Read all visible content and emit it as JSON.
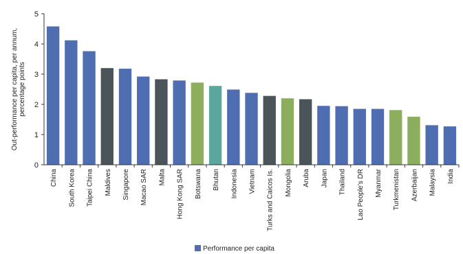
{
  "chart_data": {
    "type": "bar",
    "title": "",
    "xlabel": "",
    "ylabel": "Out-performance per capita, per annum, percentage points",
    "ylabel_lines": [
      "Out-performance per capita, per annum,",
      "percentage points"
    ],
    "ylim": [
      0,
      5
    ],
    "yticks": [
      "0",
      "1",
      "2",
      "3",
      "4",
      "5"
    ],
    "grid": false,
    "legend": {
      "placement": "bottom-center",
      "entries": [
        "Performance per capita"
      ]
    },
    "categories": [
      "China",
      "South Korea",
      "Taipei China",
      "Maldives",
      "Singapore",
      "Macao SAR",
      "Malta",
      "Hong Kong SAR",
      "Botswana",
      "Bhutan",
      "Indonesia",
      "Vietnam",
      "Turks and Caicos Is.",
      "Mongolia",
      "Aruba",
      "Japan",
      "Thailand",
      "Lao People’s DR",
      "Myanmar",
      "Turkmenistan",
      "Azerbaijan",
      "Malaysia",
      "India"
    ],
    "series": [
      {
        "name": "Performance per capita",
        "values": [
          4.58,
          4.12,
          3.76,
          3.2,
          3.18,
          2.92,
          2.83,
          2.79,
          2.72,
          2.61,
          2.49,
          2.38,
          2.28,
          2.2,
          2.17,
          1.95,
          1.94,
          1.85,
          1.85,
          1.81,
          1.59,
          1.31,
          1.27
        ],
        "colors": [
          "#4f6eb1",
          "#4f6eb1",
          "#4f6eb1",
          "#4a5459",
          "#4f6eb1",
          "#4f6eb1",
          "#4a5459",
          "#4f6eb1",
          "#8cae5e",
          "#5ba79e",
          "#4f6eb1",
          "#4f6eb1",
          "#4a5459",
          "#8cae5e",
          "#4a5459",
          "#4f6eb1",
          "#4f6eb1",
          "#4f6eb1",
          "#4f6eb1",
          "#8cae5e",
          "#8cae5e",
          "#4f6eb1",
          "#4f6eb1"
        ]
      }
    ],
    "legend_color": "#4f6eb1"
  }
}
